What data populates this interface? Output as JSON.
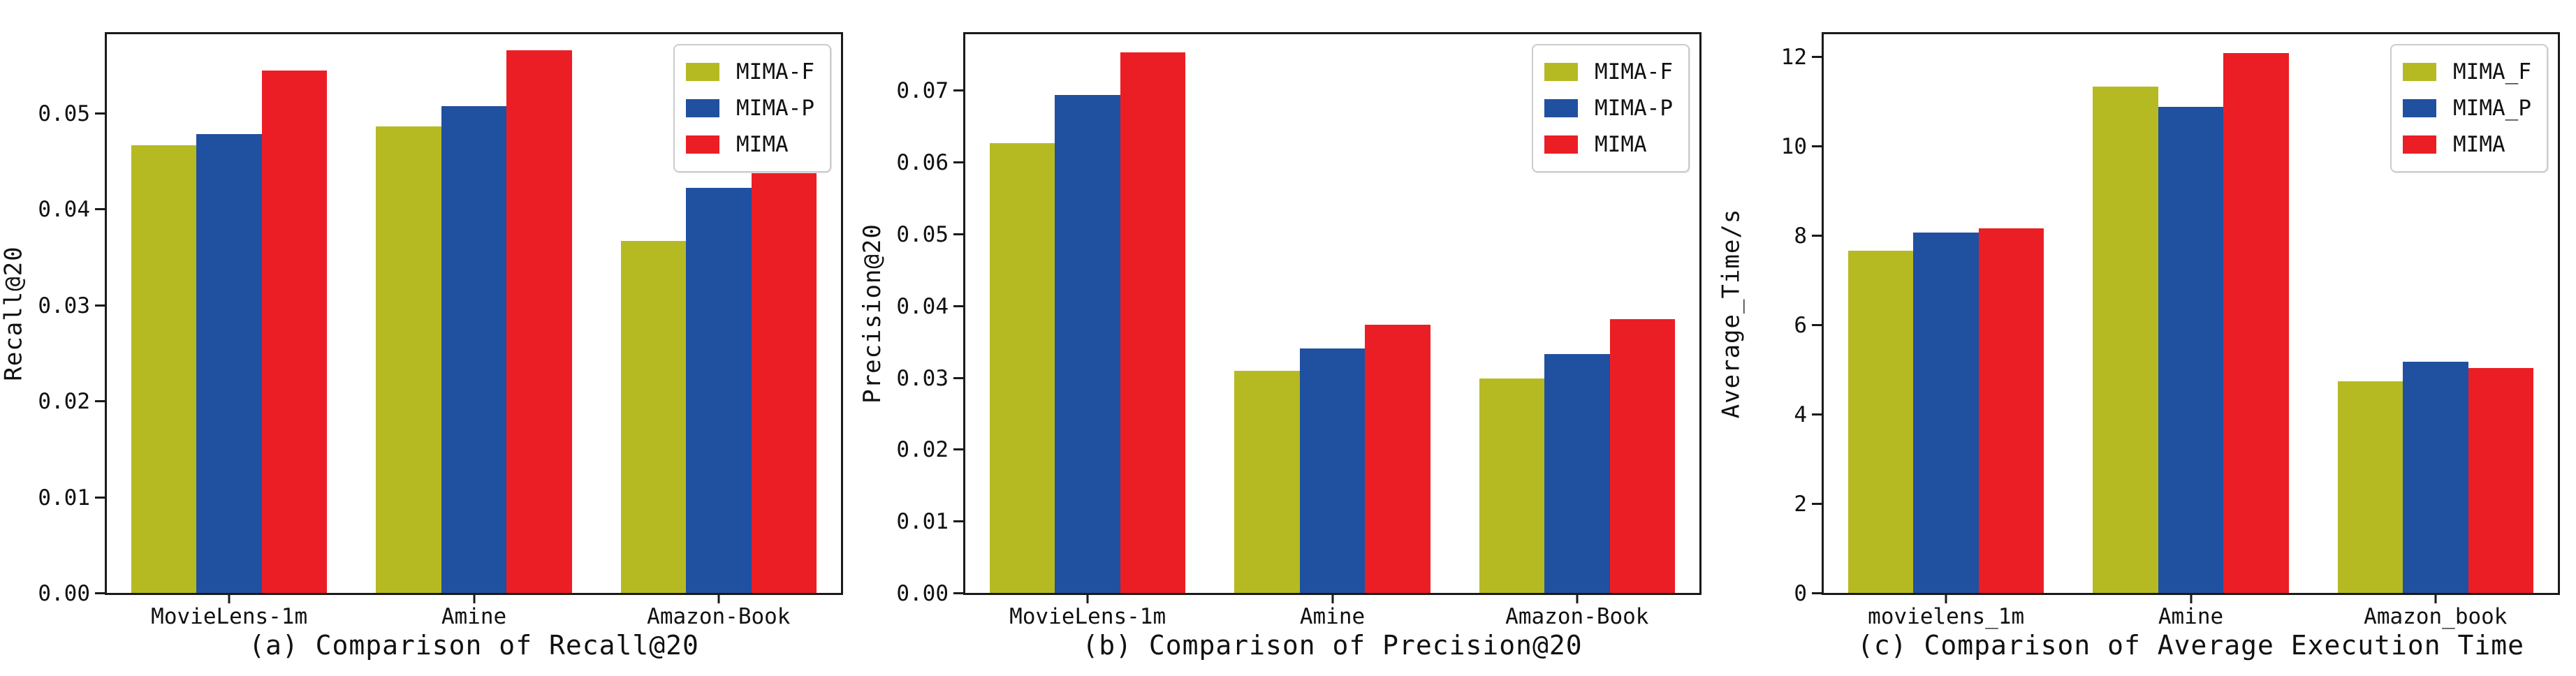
{
  "figure": {
    "background": "#ffffff",
    "axis_color": "#1a1a1a",
    "series_colors": {
      "MIMA-F": "#b6ba22",
      "MIMA-P": "#2050a0",
      "MIMA": "#ec1e25"
    }
  },
  "chart_data": [
    {
      "type": "bar",
      "title": "(a) Comparison of Recall@20",
      "ylabel": "Recall@20",
      "xlabel": "",
      "categories": [
        "MovieLens-1m",
        "Amine",
        "Amazon-Book"
      ],
      "series": [
        {
          "name": "MIMA-F",
          "color": "#b6ba22",
          "values": [
            0.0466,
            0.0486,
            0.0367
          ]
        },
        {
          "name": "MIMA-P",
          "color": "#2050a0",
          "values": [
            0.0478,
            0.0507,
            0.0422
          ]
        },
        {
          "name": "MIMA",
          "color": "#ec1e25",
          "values": [
            0.0544,
            0.0565,
            0.0474
          ]
        }
      ],
      "ylim": [
        0,
        0.0582
      ],
      "yticks": [
        0,
        0.01,
        0.02,
        0.03,
        0.04,
        0.05
      ],
      "ytick_labels": [
        "0.00",
        "0.01",
        "0.02",
        "0.03",
        "0.04",
        "0.05"
      ],
      "grid": false,
      "legend_position": "top-right",
      "legend_labels": [
        "MIMA-F",
        "MIMA-P",
        "MIMA"
      ]
    },
    {
      "type": "bar",
      "title": "(b) Comparison of Precision@20",
      "ylabel": "Precision@20",
      "xlabel": "",
      "categories": [
        "MovieLens-1m",
        "Amine",
        "Amazon-Book"
      ],
      "series": [
        {
          "name": "MIMA-F",
          "color": "#b6ba22",
          "values": [
            0.0626,
            0.0309,
            0.0299
          ]
        },
        {
          "name": "MIMA-P",
          "color": "#2050a0",
          "values": [
            0.0693,
            0.034,
            0.0333
          ]
        },
        {
          "name": "MIMA",
          "color": "#ec1e25",
          "values": [
            0.0753,
            0.0373,
            0.0381
          ]
        }
      ],
      "ylim": [
        0,
        0.0778
      ],
      "yticks": [
        0,
        0.01,
        0.02,
        0.03,
        0.04,
        0.05,
        0.06,
        0.07
      ],
      "ytick_labels": [
        "0.00",
        "0.01",
        "0.02",
        "0.03",
        "0.04",
        "0.05",
        "0.06",
        "0.07"
      ],
      "grid": false,
      "legend_position": "top-right",
      "legend_labels": [
        "MIMA-F",
        "MIMA-P",
        "MIMA"
      ]
    },
    {
      "type": "bar",
      "title": "(c) Comparison of Average Execution Time",
      "ylabel": "Average_Time/s",
      "xlabel": "",
      "categories": [
        "movielens_1m",
        "Amine",
        "Amazon_book"
      ],
      "series": [
        {
          "name": "MIMA_F",
          "color": "#b6ba22",
          "values": [
            7.66,
            11.33,
            4.73
          ]
        },
        {
          "name": "MIMA_P",
          "color": "#2050a0",
          "values": [
            8.06,
            10.88,
            5.17
          ]
        },
        {
          "name": "MIMA",
          "color": "#ec1e25",
          "values": [
            8.16,
            12.08,
            5.03
          ]
        }
      ],
      "ylim": [
        0,
        12.5
      ],
      "yticks": [
        0,
        2,
        4,
        6,
        8,
        10,
        12
      ],
      "ytick_labels": [
        "0",
        "2",
        "4",
        "6",
        "8",
        "10",
        "12"
      ],
      "grid": false,
      "legend_position": "top-right",
      "legend_labels": [
        "MIMA_F",
        "MIMA_P",
        "MIMA"
      ]
    }
  ]
}
